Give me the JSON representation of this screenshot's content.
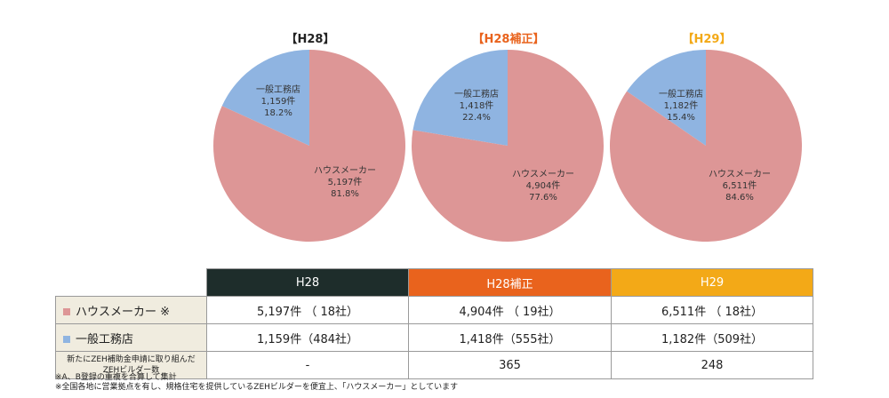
{
  "colors": {
    "house_maker": "#dd9696",
    "general_contractor": "#8fb4e1",
    "head_h28": "#1e2d2b",
    "head_h28h": "#e9631d",
    "head_h29": "#f3a917"
  },
  "chart_data": [
    {
      "type": "pie",
      "title": "【H28】",
      "slices": [
        {
          "label": "一般工務店",
          "count": "1,159件",
          "pct": "18.2%",
          "value": 18.2
        },
        {
          "label": "ハウスメーカー",
          "count": "5,197件",
          "pct": "81.8%",
          "value": 81.8
        }
      ]
    },
    {
      "type": "pie",
      "title": "【H28補正】",
      "slices": [
        {
          "label": "一般工務店",
          "count": "1,418件",
          "pct": "22.4%",
          "value": 22.4
        },
        {
          "label": "ハウスメーカー",
          "count": "4,904件",
          "pct": "77.6%",
          "value": 77.6
        }
      ]
    },
    {
      "type": "pie",
      "title": "【H29】",
      "slices": [
        {
          "label": "一般工務店",
          "count": "1,182件",
          "pct": "15.4%",
          "value": 15.4
        },
        {
          "label": "ハウスメーカー",
          "count": "6,511件",
          "pct": "84.6%",
          "value": 84.6
        }
      ]
    }
  ],
  "table": {
    "columns": [
      "H28",
      "H28補正",
      "H29"
    ],
    "rows": [
      {
        "label": "ハウスメーカー ※",
        "cells": [
          "5,197件 （ 18社）",
          "4,904件 （ 19社）",
          "6,511件 （ 18社）"
        ]
      },
      {
        "label": "一般工務店",
        "cells": [
          "1,159件（484社）",
          "1,418件（555社）",
          "1,182件（509社）"
        ]
      },
      {
        "label_line1": "新たにZEH補助金申請に取り組んだ",
        "label_line2": "ZEHビルダー数",
        "cells": [
          "-",
          "365",
          "248"
        ]
      }
    ]
  },
  "notes": [
    "※A、B登録の重複を合算して集計",
    "※全国各地に営業拠点を有し、規格住宅を提供しているZEHビルダーを便宜上、「ハウスメーカー」としています"
  ]
}
